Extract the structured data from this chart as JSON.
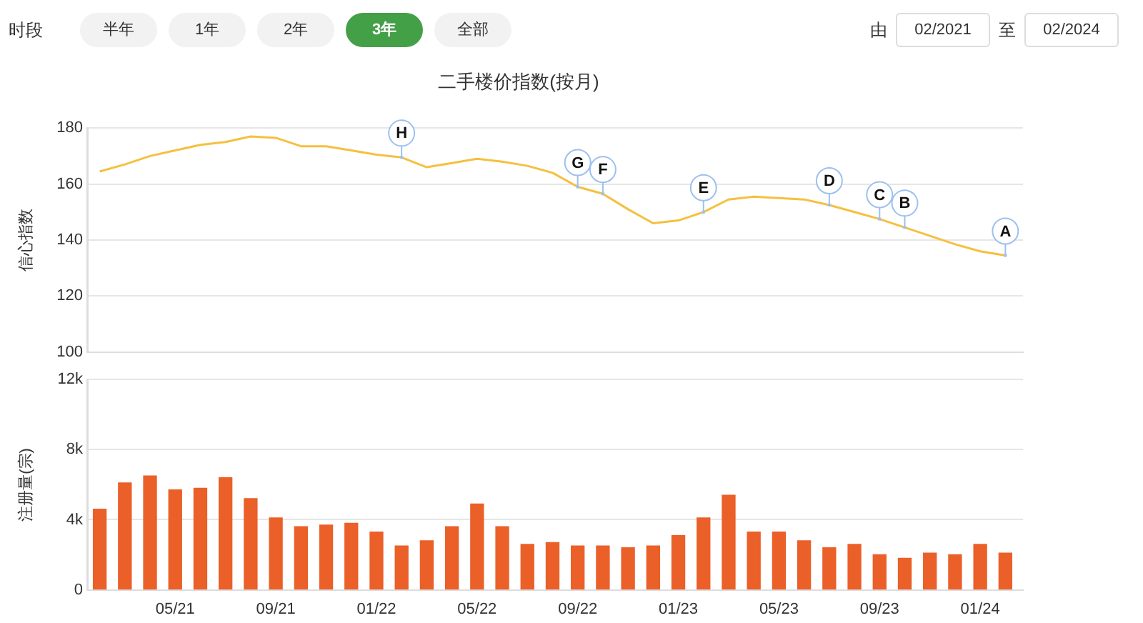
{
  "chart_data": [
    {
      "type": "other",
      "annotations": [
        "时段",
        "半年",
        "1年",
        "2年",
        "3年",
        "全部",
        "由",
        "02/2021",
        "至",
        "02/2024"
      ]
    },
    {
      "type": "line",
      "title": "二手楼价指数(按月)",
      "ylabel": "信心指数",
      "x": [
        "2021-02",
        "2021-03",
        "2021-04",
        "2021-05",
        "2021-06",
        "2021-07",
        "2021-08",
        "2021-09",
        "2021-10",
        "2021-11",
        "2021-12",
        "2022-01",
        "2022-02",
        "2022-03",
        "2022-04",
        "2022-05",
        "2022-06",
        "2022-07",
        "2022-08",
        "2022-09",
        "2022-10",
        "2022-11",
        "2022-12",
        "2023-01",
        "2023-02",
        "2023-03",
        "2023-04",
        "2023-05",
        "2023-06",
        "2023-07",
        "2023-08",
        "2023-09",
        "2023-10",
        "2023-11",
        "2023-12",
        "2024-01",
        "2024-02"
      ],
      "series": [
        {
          "color": "#f5c040",
          "values": [
            164.5,
            167,
            170,
            172,
            174,
            175,
            177,
            176.5,
            173.5,
            173.5,
            172,
            170.5,
            169.5,
            166,
            167.5,
            169,
            168,
            166.5,
            164,
            159,
            156.5,
            151,
            146,
            147,
            150,
            154.5,
            155.5,
            155,
            154.5,
            152.5,
            150,
            147.5,
            144.5,
            141.5,
            138.5,
            136,
            134.5
          ]
        }
      ],
      "xlim": [
        "2021-01-16",
        "2024-02-22"
      ],
      "ylim": [
        100,
        180
      ],
      "yticks": [
        100,
        120,
        140,
        160,
        180
      ],
      "grid": "y",
      "legend": false,
      "marker": "none",
      "tick_labels": "y",
      "annotations": [
        {
          "text": "H",
          "x": "2022-02",
          "y": 169.5
        },
        {
          "text": "G",
          "x": "2022-09",
          "y": 159
        },
        {
          "text": "F",
          "x": "2022-10",
          "y": 156.5
        },
        {
          "text": "E",
          "x": "2023-02",
          "y": 150
        },
        {
          "text": "D",
          "x": "2023-07",
          "y": 152.5
        },
        {
          "text": "C",
          "x": "2023-09",
          "y": 147.5
        },
        {
          "text": "B",
          "x": "2023-10",
          "y": 144.5
        },
        {
          "text": "A",
          "x": "2024-02",
          "y": 134.5
        }
      ]
    },
    {
      "type": "bar",
      "ylabel": "注册量(宗)",
      "x": [
        "2021-02",
        "2021-03",
        "2021-04",
        "2021-05",
        "2021-06",
        "2021-07",
        "2021-08",
        "2021-09",
        "2021-10",
        "2021-11",
        "2021-12",
        "2022-01",
        "2022-02",
        "2022-03",
        "2022-04",
        "2022-05",
        "2022-06",
        "2022-07",
        "2022-08",
        "2022-09",
        "2022-10",
        "2022-11",
        "2022-12",
        "2023-01",
        "2023-02",
        "2023-03",
        "2023-04",
        "2023-05",
        "2023-06",
        "2023-07",
        "2023-08",
        "2023-09",
        "2023-10",
        "2023-11",
        "2023-12",
        "2024-01",
        "2024-02"
      ],
      "series": [
        {
          "color": "#eb5f28",
          "values": [
            4600,
            6100,
            6500,
            5700,
            5800,
            6400,
            5200,
            4100,
            3600,
            3700,
            3800,
            3300,
            2500,
            2800,
            3600,
            4900,
            3600,
            2600,
            2700,
            2500,
            2500,
            2400,
            2500,
            3100,
            4100,
            5400,
            3300,
            3300,
            2800,
            2400,
            2600,
            2000,
            1800,
            2100,
            2000,
            2600,
            2100
          ]
        }
      ],
      "xlim": [
        "2021-01-16",
        "2024-02-22"
      ],
      "xticks": [
        {
          "value": "2021-05",
          "label": "05/21"
        },
        {
          "value": "2021-09",
          "label": "09/21"
        },
        {
          "value": "2022-01",
          "label": "01/22"
        },
        {
          "value": "2022-05",
          "label": "05/22"
        },
        {
          "value": "2022-09",
          "label": "09/22"
        },
        {
          "value": "2023-01",
          "label": "01/23"
        },
        {
          "value": "2023-05",
          "label": "05/23"
        },
        {
          "value": "2023-09",
          "label": "09/23"
        },
        {
          "value": "2024-01",
          "label": "01/24"
        }
      ],
      "ylim": [
        0,
        12000
      ],
      "yticks": [
        {
          "value": 0,
          "label": "0"
        },
        {
          "value": 4000,
          "label": "4k"
        },
        {
          "value": 8000,
          "label": "8k"
        },
        {
          "value": 12000,
          "label": "12k"
        }
      ],
      "grid": "y",
      "legend": false
    }
  ]
}
